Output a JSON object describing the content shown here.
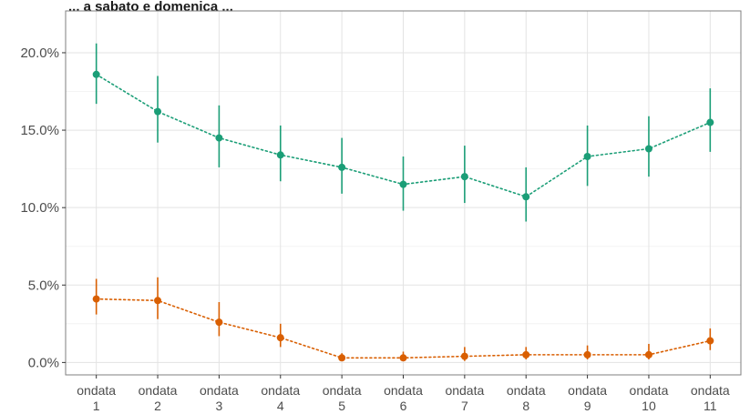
{
  "chart_data": {
    "type": "line",
    "title": "... a sabato e domenica ...",
    "xlabel": "",
    "ylabel": "",
    "categories": [
      [
        "ondata",
        "1"
      ],
      [
        "ondata",
        "2"
      ],
      [
        "ondata",
        "3"
      ],
      [
        "ondata",
        "4"
      ],
      [
        "ondata",
        "5"
      ],
      [
        "ondata",
        "6"
      ],
      [
        "ondata",
        "7"
      ],
      [
        "ondata",
        "8"
      ],
      [
        "ondata",
        "9"
      ],
      [
        "ondata",
        "10"
      ],
      [
        "ondata",
        "11"
      ]
    ],
    "ylim": [
      -0.008,
      0.227
    ],
    "yticks": [
      0.0,
      0.05,
      0.1,
      0.15,
      0.2
    ],
    "ytick_labels": [
      "0.0%",
      "5.0%",
      "10.0%",
      "15.0%",
      "20.0%"
    ],
    "grid": true,
    "series": [
      {
        "color": "#1b9e77",
        "values": [
          0.186,
          0.162,
          0.145,
          0.134,
          0.126,
          0.115,
          0.12,
          0.107,
          0.133,
          0.138,
          0.155
        ],
        "lower": [
          0.167,
          0.142,
          0.126,
          0.117,
          0.109,
          0.098,
          0.103,
          0.091,
          0.114,
          0.12,
          0.136
        ],
        "upper": [
          0.206,
          0.185,
          0.166,
          0.153,
          0.145,
          0.133,
          0.14,
          0.126,
          0.153,
          0.159,
          0.177
        ]
      },
      {
        "color": "#d95f02",
        "values": [
          0.041,
          0.04,
          0.026,
          0.016,
          0.003,
          0.003,
          0.004,
          0.005,
          0.005,
          0.005,
          0.014
        ],
        "lower": [
          0.031,
          0.028,
          0.017,
          0.01,
          0.001,
          0.001,
          0.001,
          0.002,
          0.002,
          0.002,
          0.008
        ],
        "upper": [
          0.054,
          0.055,
          0.039,
          0.025,
          0.006,
          0.007,
          0.01,
          0.01,
          0.011,
          0.012,
          0.022
        ]
      }
    ]
  }
}
